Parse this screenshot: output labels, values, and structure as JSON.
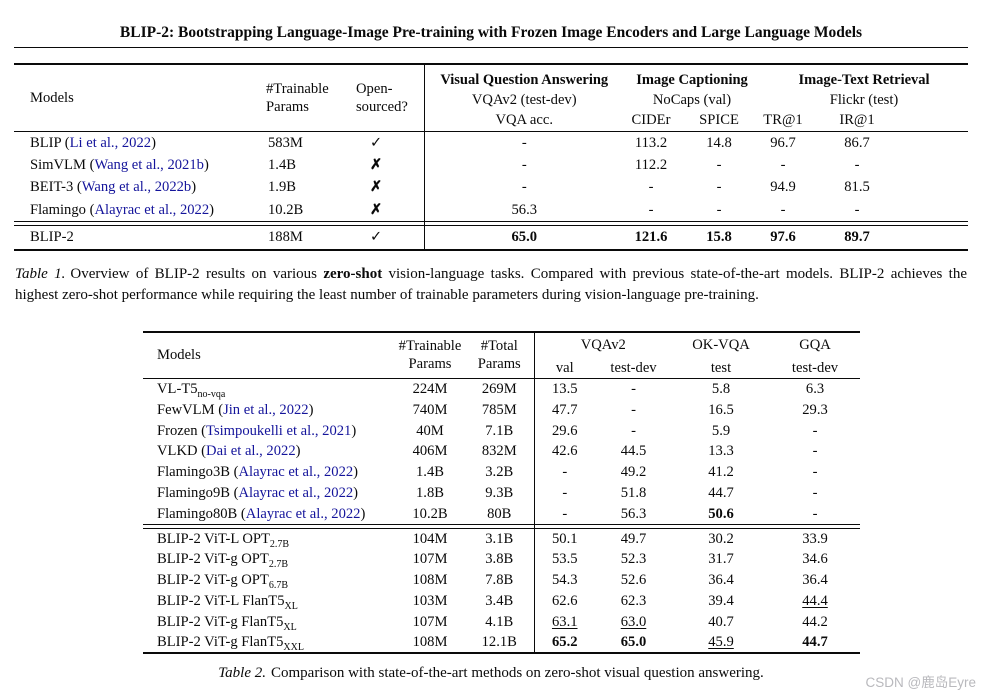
{
  "paper": {
    "title": "BLIP-2: Bootstrapping Language-Image Pre-training with Frozen Image Encoders and Large Language Models"
  },
  "colors": {
    "citation": "#14149b",
    "watermark": "#b9b9bd",
    "rule": "#0a0a0a"
  },
  "icons": {
    "check": "✓",
    "cross": "✗"
  },
  "watermark": "CSDN @鹿岛Eyre",
  "table1": {
    "header": {
      "models": "Models",
      "trainable": [
        "#Trainable",
        "Params"
      ],
      "open": [
        "Open-",
        "sourced?"
      ],
      "groups": [
        {
          "title": "Visual Question Answering",
          "dataset": "VQAv2 (test-dev)",
          "metrics": [
            "VQA acc."
          ]
        },
        {
          "title": "Image Captioning",
          "dataset": "NoCaps (val)",
          "metrics": [
            "CIDEr",
            "SPICE"
          ]
        },
        {
          "title": "Image-Text Retrieval",
          "dataset": "Flickr (test)",
          "metrics": [
            "TR@1",
            "IR@1"
          ]
        }
      ]
    },
    "rows": [
      {
        "pre": "BLIP (",
        "cite": "Li et al., 2022",
        "post": ")",
        "sub": "",
        "trainable": "583M",
        "open": "check",
        "cells": [
          {
            "v": "-",
            "s": ""
          },
          {
            "v": "113.2",
            "s": ""
          },
          {
            "v": "14.8",
            "s": ""
          },
          {
            "v": "96.7",
            "s": ""
          },
          {
            "v": "86.7",
            "s": ""
          }
        ]
      },
      {
        "pre": "SimVLM (",
        "cite": "Wang et al., 2021b",
        "post": ")",
        "sub": "",
        "trainable": "1.4B",
        "open": "cross",
        "cells": [
          {
            "v": "-",
            "s": ""
          },
          {
            "v": "112.2",
            "s": ""
          },
          {
            "v": "-",
            "s": ""
          },
          {
            "v": "-",
            "s": ""
          },
          {
            "v": "-",
            "s": ""
          }
        ]
      },
      {
        "pre": "BEIT-3 (",
        "cite": "Wang et al., 2022b",
        "post": ")",
        "sub": "",
        "trainable": "1.9B",
        "open": "cross",
        "cells": [
          {
            "v": "-",
            "s": ""
          },
          {
            "v": "-",
            "s": ""
          },
          {
            "v": "-",
            "s": ""
          },
          {
            "v": "94.9",
            "s": ""
          },
          {
            "v": "81.5",
            "s": ""
          }
        ]
      },
      {
        "pre": "Flamingo (",
        "cite": "Alayrac et al., 2022",
        "post": ")",
        "sub": "",
        "trainable": "10.2B",
        "open": "cross",
        "cells": [
          {
            "v": "56.3",
            "s": ""
          },
          {
            "v": "-",
            "s": ""
          },
          {
            "v": "-",
            "s": ""
          },
          {
            "v": "-",
            "s": ""
          },
          {
            "v": "-",
            "s": ""
          }
        ]
      },
      {
        "pre": "BLIP-2",
        "cite": "",
        "post": "",
        "sub": "",
        "trainable": "188M",
        "open": "check",
        "section": "ours",
        "rule_before": true,
        "cells": [
          {
            "v": "65.0",
            "s": "b"
          },
          {
            "v": "121.6",
            "s": "b"
          },
          {
            "v": "15.8",
            "s": "b"
          },
          {
            "v": "97.6",
            "s": "b"
          },
          {
            "v": "89.7",
            "s": "b"
          }
        ]
      }
    ],
    "caption": {
      "label": "Table 1.",
      "parts": [
        {
          "t": "Overview of BLIP-2 results on various ",
          "s": ""
        },
        {
          "t": "zero-shot",
          "s": "b"
        },
        {
          "t": " vision-language tasks. Compared with previous state-of-the-art models. BLIP-2 achieves the highest zero-shot performance while requiring the least number of trainable parameters during vision-language pre-training.",
          "s": ""
        }
      ]
    }
  },
  "table2": {
    "header": {
      "models": "Models",
      "trainable": [
        "#Trainable",
        "Params"
      ],
      "total": [
        "#Total",
        "Params"
      ],
      "groups": [
        {
          "title": "VQAv2",
          "subs": [
            "val",
            "test-dev"
          ]
        },
        {
          "title": "OK-VQA",
          "subs": [
            "test"
          ]
        },
        {
          "title": "GQA",
          "subs": [
            "test-dev"
          ]
        }
      ]
    },
    "rows": [
      {
        "pre": "VL-T5",
        "sub": "no-vqa",
        "cite": "",
        "post": "",
        "trainable": "224M",
        "total": "269M",
        "cells": [
          {
            "v": "13.5",
            "s": ""
          },
          {
            "v": "-",
            "s": ""
          },
          {
            "v": "5.8",
            "s": ""
          },
          {
            "v": "6.3",
            "s": ""
          }
        ]
      },
      {
        "pre": "FewVLM (",
        "cite": "Jin et al., 2022",
        "post": ")",
        "sub": "",
        "trainable": "740M",
        "total": "785M",
        "cells": [
          {
            "v": "47.7",
            "s": ""
          },
          {
            "v": "-",
            "s": ""
          },
          {
            "v": "16.5",
            "s": ""
          },
          {
            "v": "29.3",
            "s": ""
          }
        ]
      },
      {
        "pre": "Frozen (",
        "cite": "Tsimpoukelli et al., 2021",
        "post": ")",
        "sub": "",
        "trainable": "40M",
        "total": "7.1B",
        "cells": [
          {
            "v": "29.6",
            "s": ""
          },
          {
            "v": "-",
            "s": ""
          },
          {
            "v": "5.9",
            "s": ""
          },
          {
            "v": "-",
            "s": ""
          }
        ]
      },
      {
        "pre": "VLKD (",
        "cite": "Dai et al., 2022",
        "post": ")",
        "sub": "",
        "trainable": "406M",
        "total": "832M",
        "cells": [
          {
            "v": "42.6",
            "s": ""
          },
          {
            "v": "44.5",
            "s": ""
          },
          {
            "v": "13.3",
            "s": ""
          },
          {
            "v": "-",
            "s": ""
          }
        ]
      },
      {
        "pre": "Flamingo3B (",
        "cite": "Alayrac et al., 2022",
        "post": ")",
        "sub": "",
        "trainable": "1.4B",
        "total": "3.2B",
        "cells": [
          {
            "v": "-",
            "s": ""
          },
          {
            "v": "49.2",
            "s": ""
          },
          {
            "v": "41.2",
            "s": ""
          },
          {
            "v": "-",
            "s": ""
          }
        ]
      },
      {
        "pre": "Flamingo9B (",
        "cite": "Alayrac et al., 2022",
        "post": ")",
        "sub": "",
        "trainable": "1.8B",
        "total": "9.3B",
        "cells": [
          {
            "v": "-",
            "s": ""
          },
          {
            "v": "51.8",
            "s": ""
          },
          {
            "v": "44.7",
            "s": ""
          },
          {
            "v": "-",
            "s": ""
          }
        ]
      },
      {
        "pre": "Flamingo80B (",
        "cite": "Alayrac et al., 2022",
        "post": ")",
        "sub": "",
        "trainable": "10.2B",
        "total": "80B",
        "cells": [
          {
            "v": "-",
            "s": ""
          },
          {
            "v": "56.3",
            "s": ""
          },
          {
            "v": "50.6",
            "s": "b"
          },
          {
            "v": "-",
            "s": ""
          }
        ]
      },
      {
        "pre": "BLIP-2 ViT-L OPT",
        "sub": "2.7B",
        "cite": "",
        "post": "",
        "trainable": "104M",
        "total": "3.1B",
        "rule_before": true,
        "cells": [
          {
            "v": "50.1",
            "s": ""
          },
          {
            "v": "49.7",
            "s": ""
          },
          {
            "v": "30.2",
            "s": ""
          },
          {
            "v": "33.9",
            "s": ""
          }
        ]
      },
      {
        "pre": "BLIP-2 ViT-g OPT",
        "sub": "2.7B",
        "cite": "",
        "post": "",
        "trainable": "107M",
        "total": "3.8B",
        "cells": [
          {
            "v": "53.5",
            "s": ""
          },
          {
            "v": "52.3",
            "s": ""
          },
          {
            "v": "31.7",
            "s": ""
          },
          {
            "v": "34.6",
            "s": ""
          }
        ]
      },
      {
        "pre": "BLIP-2 ViT-g OPT",
        "sub": "6.7B",
        "cite": "",
        "post": "",
        "trainable": "108M",
        "total": "7.8B",
        "cells": [
          {
            "v": "54.3",
            "s": ""
          },
          {
            "v": "52.6",
            "s": ""
          },
          {
            "v": "36.4",
            "s": ""
          },
          {
            "v": "36.4",
            "s": ""
          }
        ]
      },
      {
        "pre": "BLIP-2 ViT-L FlanT5",
        "sub": "XL",
        "cite": "",
        "post": "",
        "trainable": "103M",
        "total": "3.4B",
        "cells": [
          {
            "v": "62.6",
            "s": ""
          },
          {
            "v": "62.3",
            "s": ""
          },
          {
            "v": "39.4",
            "s": ""
          },
          {
            "v": "44.4",
            "s": "u"
          }
        ]
      },
      {
        "pre": "BLIP-2 ViT-g FlanT5",
        "sub": "XL",
        "cite": "",
        "post": "",
        "trainable": "107M",
        "total": "4.1B",
        "cells": [
          {
            "v": "63.1",
            "s": "u"
          },
          {
            "v": "63.0",
            "s": "u"
          },
          {
            "v": "40.7",
            "s": ""
          },
          {
            "v": "44.2",
            "s": ""
          }
        ]
      },
      {
        "pre": "BLIP-2 ViT-g FlanT5",
        "sub": "XXL",
        "cite": "",
        "post": "",
        "trainable": "108M",
        "total": "12.1B",
        "cells": [
          {
            "v": "65.2",
            "s": "b"
          },
          {
            "v": "65.0",
            "s": "b"
          },
          {
            "v": "45.9",
            "s": "u"
          },
          {
            "v": "44.7",
            "s": "b"
          }
        ]
      }
    ],
    "caption": {
      "label": "Table 2.",
      "text": "Comparison with state-of-the-art methods on zero-shot visual question answering."
    }
  }
}
